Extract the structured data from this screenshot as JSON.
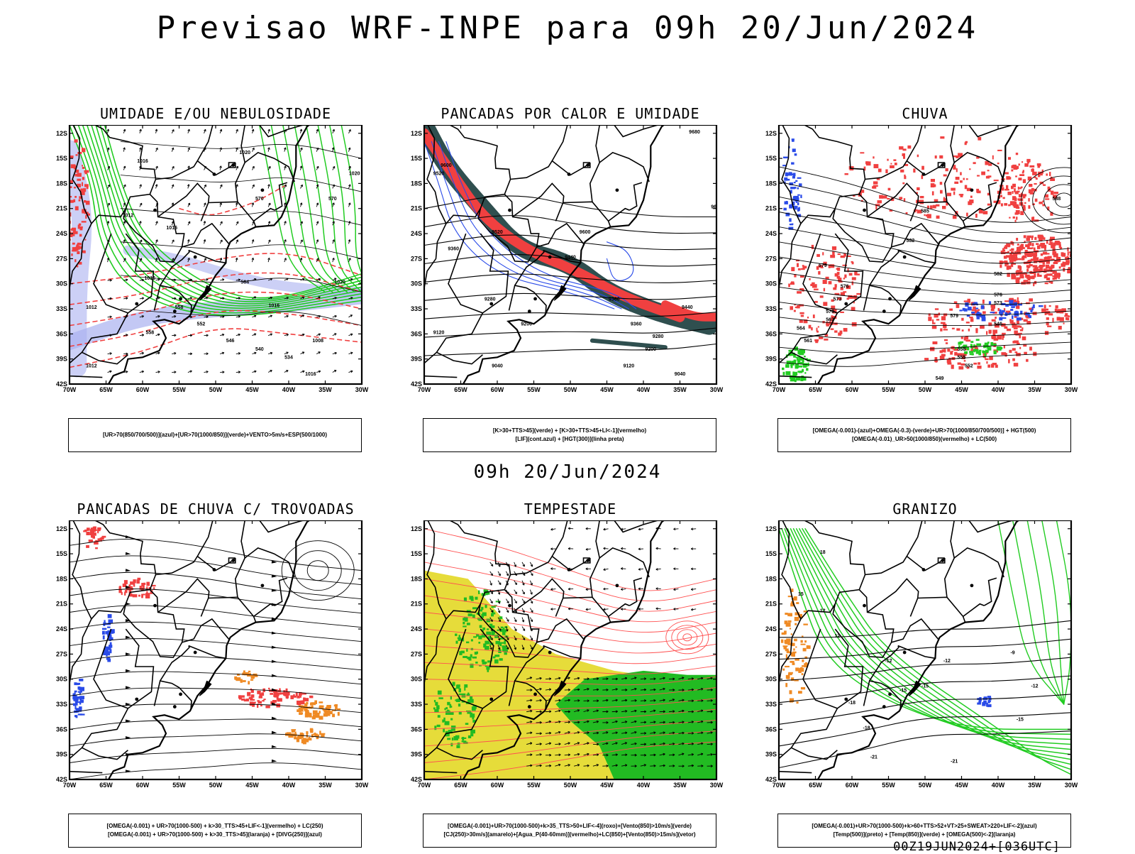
{
  "header": {
    "title": "Previsao WRF-INPE  para 09h 20/Jun/2024",
    "mid_label": "09h 20/Jun/2024",
    "footer": "00Z19JUN2024+[036UTC]"
  },
  "axes": {
    "lat_labels": [
      "12S",
      "15S",
      "18S",
      "21S",
      "24S",
      "27S",
      "30S",
      "33S",
      "36S",
      "39S",
      "42S"
    ],
    "lon_labels": [
      "70W",
      "65W",
      "60W",
      "55W",
      "50W",
      "45W",
      "40W",
      "35W",
      "30W"
    ]
  },
  "colors": {
    "green": "#22cc22",
    "red": "#f04040",
    "blue": "#2a4be8",
    "lavender": "#aab0f0",
    "darkteal": "#2f4f4f",
    "yellow": "#e6dc3a",
    "orange": "#ef8a24",
    "thin_red": "#ff5050"
  },
  "panels": [
    {
      "title": "UMIDADE E/OU NEBULOSIDADE",
      "caption": [
        "[UR>70(850/700/500)](azul)+[UR>70(1000/850)](verde)+VENTO>5m/s+ESP(500/1000)"
      ],
      "contour_labels": [
        "1016",
        "1020",
        "1020",
        "1012",
        "1016",
        "1020",
        "1016",
        "1012",
        "1016",
        "1008",
        "1016",
        "1012",
        "570",
        "570",
        "558",
        "552",
        "546",
        "540",
        "534",
        "558",
        "564"
      ]
    },
    {
      "title": "PANCADAS POR CALOR E UMIDADE",
      "caption": [
        "[K>30+TTS>45](verde) + [K>30+TTS>45+LI<-1](vermelho)",
        "[LIF](cont.azul) + [HGT(300)](linha preta)"
      ],
      "contour_labels": [
        "9680",
        "9600",
        "9520",
        "9680",
        "9600",
        "9520",
        "9360",
        "9440",
        "9360",
        "9280",
        "9200",
        "9120",
        "9040",
        "9200",
        "9120",
        "9040",
        "9440",
        "9360",
        "9280"
      ]
    },
    {
      "title": "CHUVA",
      "caption": [
        "[OMEGA(-0.001)-(azul)+OMEGA(-0.3)-(verde)+UR>70(1000/850/700/500)] + HGT(500)",
        "[OMEGA(-0.01)_UR>50(1000/850)(vermelho) + LC(500)"
      ],
      "contour_labels": [
        "588",
        "585",
        "582",
        "579",
        "576",
        "573",
        "570",
        "567",
        "564",
        "561",
        "558",
        "555",
        "552",
        "549",
        "546",
        "582",
        "579",
        "576",
        "573"
      ]
    },
    {
      "title": "PANCADAS DE CHUVA C/ TROVOADAS",
      "caption": [
        "[OMEGA(-0.001) + UR>70(1000-500) + k>30_TTS>45+LIF<-1](vermelho) + LC(250)",
        "[OMEGA(-0.001) + UR>70(1000-500) + k>30_TTS>45](laranja) + [DIVG(250)](azul)"
      ],
      "contour_labels": []
    },
    {
      "title": "TEMPESTADE",
      "caption": [
        "[OMEGA(-0.001)+UR>70(1000-500)+k>35_TTS>50+LIF<-4](roxo)+[Vento(850)>10m/s](verde)",
        "[CJ(250)>30m/s](amarelo)+[Agua_P(40-60mm)](vermelho)+LC(850)+[Vento(850)>15m/s](vetor)"
      ],
      "contour_labels": []
    },
    {
      "title": "GRANIZO",
      "caption": [
        "[OMEGA(-0.001)+UR>70(1000-500)+k>60+TTS>52+VT>25+SWEAT>220+LIF<-2](azul)",
        "[Temp(500)](preto) + [Temp(850)](verde) + [OMEGA(500)<-2](laranja)"
      ],
      "contour_labels": [
        "18",
        "15",
        "12",
        "-12",
        "-12",
        "-15",
        "-15",
        "-15",
        "-18",
        "-18",
        "-21",
        "-21",
        "-12",
        "-9",
        "12"
      ]
    }
  ]
}
